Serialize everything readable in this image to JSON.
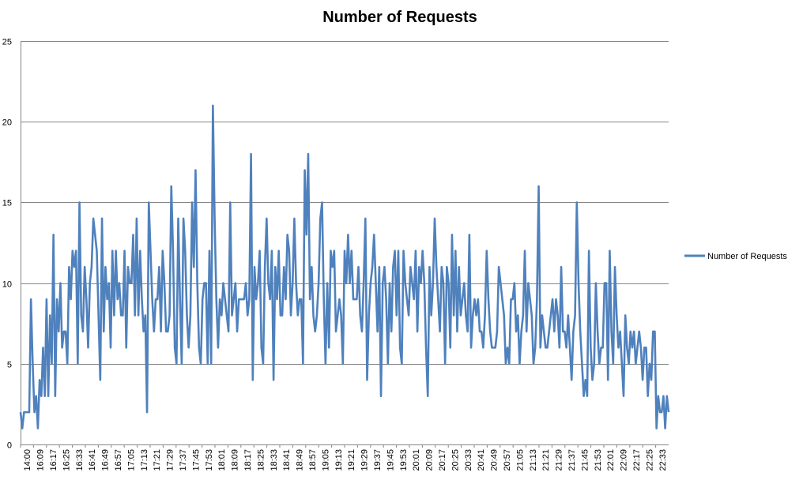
{
  "chart_data": {
    "type": "line",
    "title": "Number of Requests",
    "xlabel": "",
    "ylabel": "",
    "ylim": [
      0,
      25
    ],
    "yticks": [
      0,
      5,
      10,
      15,
      20,
      25
    ],
    "grid": true,
    "legend_position": "right",
    "x_tick_labels": [
      "14:00",
      "16:09",
      "16:17",
      "16:25",
      "16:33",
      "16:41",
      "16:49",
      "16:57",
      "17:05",
      "17:13",
      "17:21",
      "17:29",
      "17:37",
      "17:45",
      "17:53",
      "18:01",
      "18:09",
      "18:17",
      "18:25",
      "18:33",
      "18:41",
      "18:49",
      "18:57",
      "19:05",
      "19:13",
      "19:21",
      "19:29",
      "19:37",
      "19:45",
      "19:53",
      "20:01",
      "20:09",
      "20:17",
      "20:25",
      "20:33",
      "20:41",
      "20:49",
      "20:57",
      "21:05",
      "21:13",
      "21:21",
      "21:29",
      "21:37",
      "21:45",
      "21:53",
      "22:01",
      "22:09",
      "22:17",
      "22:25",
      "22:33"
    ],
    "series": [
      {
        "name": "Number of Requests",
        "color": "#4F81BD",
        "values": [
          2,
          1,
          2,
          2,
          2,
          2,
          9,
          5,
          2,
          3,
          1,
          4,
          3,
          6,
          3,
          9,
          3,
          8,
          5,
          13,
          3,
          9,
          7,
          10,
          6,
          7,
          7,
          5,
          11,
          9,
          12,
          11,
          12,
          5,
          15,
          8,
          7,
          11,
          9,
          6,
          10,
          11,
          14,
          13,
          12,
          8,
          4,
          14,
          7,
          11,
          9,
          10,
          6,
          12,
          8,
          12,
          9,
          10,
          8,
          8,
          12,
          6,
          11,
          10,
          10,
          13,
          8,
          14,
          8,
          12,
          9,
          7,
          8,
          2,
          15,
          12,
          9,
          7,
          9,
          9,
          11,
          7,
          12,
          10,
          7,
          7,
          8,
          16,
          12,
          6,
          5,
          14,
          9,
          5,
          14,
          12,
          8,
          6,
          8,
          15,
          11,
          17,
          10,
          6,
          5,
          9,
          10,
          10,
          5,
          12,
          5,
          21,
          14,
          9,
          6,
          9,
          8,
          10,
          9,
          8,
          7,
          15,
          8,
          9,
          10,
          7,
          9,
          9,
          9,
          9,
          10,
          8,
          9,
          18,
          4,
          11,
          9,
          10,
          12,
          6,
          5,
          11,
          14,
          10,
          9,
          12,
          4,
          11,
          9,
          12,
          8,
          8,
          11,
          9,
          13,
          12,
          8,
          10,
          14,
          10,
          8,
          9,
          9,
          5,
          17,
          13,
          18,
          9,
          11,
          8,
          7,
          8,
          10,
          14,
          15,
          9,
          5,
          10,
          6,
          12,
          11,
          12,
          7,
          8,
          9,
          8,
          5,
          12,
          10,
          13,
          10,
          12,
          9,
          9,
          9,
          11,
          8,
          7,
          10,
          14,
          4,
          8,
          10,
          11,
          13,
          10,
          7,
          11,
          3,
          10,
          11,
          9,
          5,
          10,
          7,
          11,
          12,
          8,
          12,
          6,
          5,
          12,
          10,
          9,
          8,
          11,
          10,
          9,
          12,
          7,
          11,
          10,
          12,
          10,
          6,
          3,
          11,
          8,
          10,
          14,
          11,
          9,
          7,
          11,
          10,
          5,
          11,
          10,
          6,
          13,
          8,
          12,
          7,
          11,
          8,
          9,
          10,
          8,
          7,
          13,
          6,
          8,
          9,
          8,
          9,
          7,
          7,
          6,
          8,
          12,
          9,
          7,
          6,
          6,
          6,
          7,
          11,
          10,
          9,
          8,
          5,
          6,
          5,
          9,
          9,
          10,
          7,
          8,
          5,
          7,
          8,
          12,
          7,
          10,
          9,
          8,
          5,
          6,
          9,
          16,
          6,
          8,
          7,
          6,
          6,
          7,
          8,
          9,
          7,
          9,
          8,
          6,
          11,
          7,
          7,
          6,
          8,
          6,
          4,
          7,
          8,
          15,
          10,
          7,
          5,
          3,
          4,
          3,
          12,
          6,
          4,
          5,
          10,
          7,
          5,
          6,
          6,
          10,
          10,
          4,
          12,
          7,
          5,
          11,
          8,
          6,
          7,
          5,
          3,
          8,
          6,
          5,
          7,
          6,
          7,
          5,
          6,
          7,
          6,
          4,
          6,
          6,
          3,
          5,
          4,
          7,
          7,
          1,
          3,
          2,
          2,
          3,
          1,
          3,
          2
        ]
      }
    ]
  }
}
